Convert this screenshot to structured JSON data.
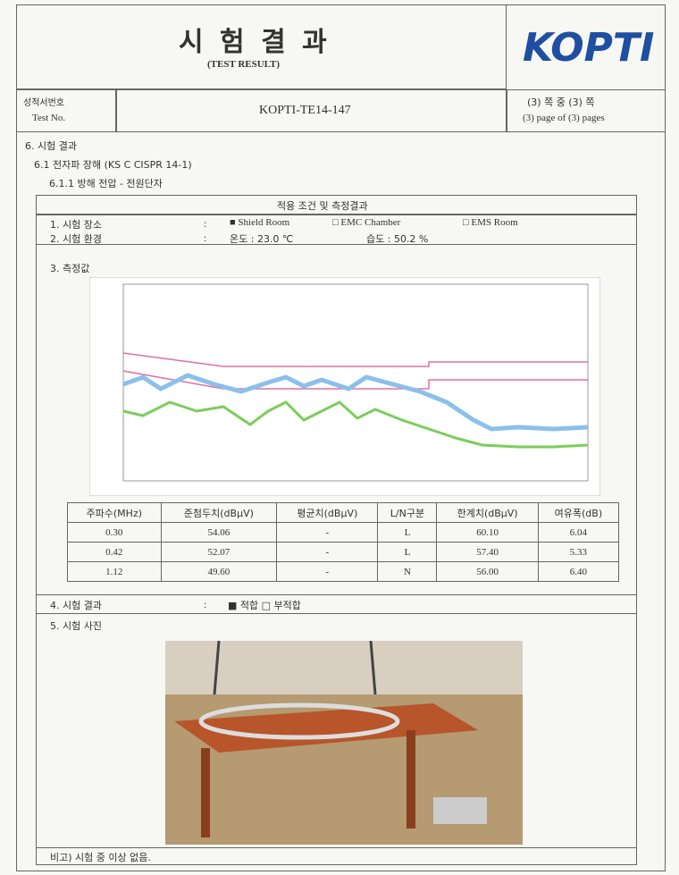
{
  "header": {
    "title": "시 험 결 과",
    "subtitle": "(TEST RESULT)",
    "logo": "KOPTI"
  },
  "test_no": {
    "label_ko": "성적서번호",
    "label_en": "Test No.",
    "value": "KOPTI-TE14-147",
    "page_ko": "(3) 쪽 중 (3) 쪽",
    "page_en": "(3) page of (3) pages"
  },
  "sections": {
    "s6": "6. 시험 결과",
    "s61": "6.1 전자파 장해 (KS C CISPR 14-1)",
    "s611": "6.1.1 방해 전압 - 전원단자"
  },
  "box": {
    "title": "적용 조건 및 측정결과",
    "place": {
      "label": "1. 시험 장소",
      "sep": ":",
      "options": [
        "■ Shield Room",
        "□ EMC Chamber",
        "□ EMS Room"
      ]
    },
    "env": {
      "label": "2. 시험 환경",
      "sep": ":",
      "temp": "온도 : 23.0 ℃",
      "hum": "습도 : 50.2 %"
    },
    "measure": {
      "label": "3. 측정값"
    },
    "table": {
      "header": [
        "주파수(MHz)",
        "준첨두치(dBμV)",
        "평균치(dBμV)",
        "L/N구분",
        "한계치(dBμV)",
        "여유폭(dB)"
      ],
      "rows": [
        [
          "0.30",
          "54.06",
          "-",
          "L",
          "60.10",
          "6.04"
        ],
        [
          "0.42",
          "52.07",
          "-",
          "L",
          "57.40",
          "5.33"
        ],
        [
          "1.12",
          "49.60",
          "-",
          "N",
          "56.00",
          "6.40"
        ]
      ]
    },
    "result": {
      "label": "4. 시험 결과",
      "sep": ":",
      "value": "■ 적합 □ 부적합"
    },
    "photo": {
      "label": "5. 시험 사진"
    },
    "note": "비고) 시험 중 이상 없음."
  }
}
